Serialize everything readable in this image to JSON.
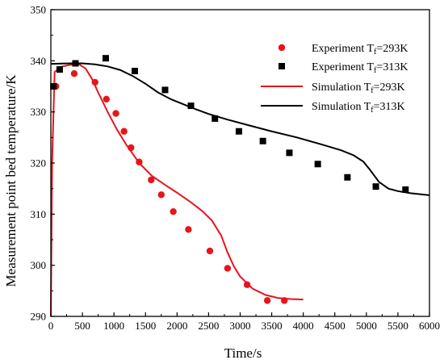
{
  "chart_data": {
    "type": "scatter",
    "xlabel": "Time/s",
    "ylabel": "Measurement point bed temperature/K",
    "xlim": [
      0,
      6000
    ],
    "ylim": [
      290,
      350
    ],
    "x_ticks": [
      "0",
      "500",
      "1000",
      "1500",
      "2000",
      "2500",
      "3000",
      "3500",
      "4000",
      "4500",
      "5000",
      "5500",
      "6000"
    ],
    "y_ticks": [
      "290",
      "300",
      "310",
      "320",
      "330",
      "340",
      "350"
    ],
    "grid": false,
    "legend_position": "top-right",
    "colors": {
      "red": "#e8141c",
      "black": "#000000"
    },
    "series": [
      {
        "kind": "points",
        "marker": "circle",
        "color": "#e8141c",
        "legend": {
          "prefix": "Experiment  T",
          "sub": "f",
          "suffix": "=293K"
        },
        "points": [
          [
            80,
            335.0
          ],
          [
            370,
            337.5
          ],
          [
            700,
            335.8
          ],
          [
            880,
            332.5
          ],
          [
            1030,
            329.7
          ],
          [
            1160,
            326.2
          ],
          [
            1270,
            323.0
          ],
          [
            1400,
            320.2
          ],
          [
            1590,
            316.7
          ],
          [
            1750,
            313.8
          ],
          [
            1940,
            310.5
          ],
          [
            2180,
            307.0
          ],
          [
            2520,
            302.8
          ],
          [
            2800,
            299.4
          ],
          [
            3110,
            296.2
          ],
          [
            3430,
            293.1
          ],
          [
            3700,
            293.1
          ]
        ]
      },
      {
        "kind": "points",
        "marker": "square",
        "color": "#000000",
        "legend": {
          "prefix": "Experiment  T",
          "sub": "f",
          "suffix": "=313K"
        },
        "points": [
          [
            40,
            335.0
          ],
          [
            140,
            338.3
          ],
          [
            390,
            339.5
          ],
          [
            870,
            340.5
          ],
          [
            1330,
            338.0
          ],
          [
            1810,
            334.3
          ],
          [
            2220,
            331.2
          ],
          [
            2600,
            328.7
          ],
          [
            2980,
            326.2
          ],
          [
            3360,
            324.3
          ],
          [
            3780,
            322.0
          ],
          [
            4230,
            319.8
          ],
          [
            4700,
            317.2
          ],
          [
            5150,
            315.4
          ],
          [
            5620,
            314.8
          ]
        ]
      },
      {
        "kind": "line",
        "color": "#e8141c",
        "legend": {
          "prefix": "Simulation   T",
          "sub": "f",
          "suffix": "=293K"
        },
        "points": [
          [
            0,
            290
          ],
          [
            20,
            320
          ],
          [
            60,
            337.8
          ],
          [
            150,
            338.8
          ],
          [
            300,
            339.2
          ],
          [
            450,
            339.3
          ],
          [
            550,
            338.5
          ],
          [
            650,
            336.5
          ],
          [
            750,
            333.8
          ],
          [
            900,
            330.0
          ],
          [
            1050,
            326.5
          ],
          [
            1200,
            323.5
          ],
          [
            1400,
            320.0
          ],
          [
            1600,
            317.5
          ],
          [
            1800,
            315.8
          ],
          [
            2000,
            314.2
          ],
          [
            2200,
            312.5
          ],
          [
            2400,
            310.6
          ],
          [
            2550,
            308.8
          ],
          [
            2700,
            305.8
          ],
          [
            2800,
            302.5
          ],
          [
            2900,
            299.8
          ],
          [
            3000,
            297.8
          ],
          [
            3200,
            295.4
          ],
          [
            3400,
            294.2
          ],
          [
            3600,
            293.6
          ],
          [
            3800,
            293.4
          ],
          [
            4000,
            293.3
          ]
        ]
      },
      {
        "kind": "line",
        "color": "#000000",
        "legend": {
          "prefix": "Simulation   T",
          "sub": "f",
          "suffix": "=313K"
        },
        "points": [
          [
            0,
            339.4
          ],
          [
            300,
            339.5
          ],
          [
            500,
            339.5
          ],
          [
            700,
            339.3
          ],
          [
            900,
            338.9
          ],
          [
            1100,
            338.2
          ],
          [
            1300,
            337.0
          ],
          [
            1500,
            335.5
          ],
          [
            1700,
            333.8
          ],
          [
            1900,
            332.5
          ],
          [
            2100,
            331.5
          ],
          [
            2300,
            330.5
          ],
          [
            2500,
            329.6
          ],
          [
            2800,
            328.5
          ],
          [
            3100,
            327.5
          ],
          [
            3500,
            326.2
          ],
          [
            3900,
            325.0
          ],
          [
            4300,
            323.6
          ],
          [
            4600,
            322.5
          ],
          [
            4800,
            321.5
          ],
          [
            4950,
            320.3
          ],
          [
            5050,
            318.8
          ],
          [
            5200,
            316.3
          ],
          [
            5350,
            315.0
          ],
          [
            5500,
            314.5
          ],
          [
            5700,
            314.1
          ],
          [
            5850,
            313.9
          ],
          [
            6000,
            313.7
          ]
        ]
      }
    ]
  }
}
